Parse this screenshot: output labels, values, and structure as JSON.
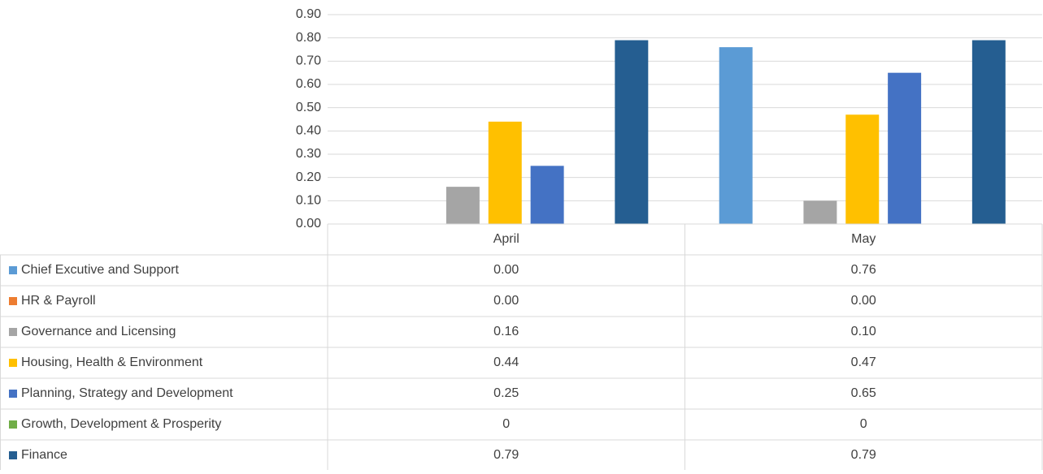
{
  "chart_data": {
    "type": "bar",
    "categories": [
      "April",
      "May"
    ],
    "series": [
      {
        "name": "Chief Excutive and Support",
        "color": "#5b9bd5",
        "values": [
          0,
          0.76
        ],
        "value_labels": [
          "0.00",
          "0.76"
        ]
      },
      {
        "name": "HR & Payroll",
        "color": "#ed7d31",
        "values": [
          0,
          0
        ],
        "value_labels": [
          "0.00",
          "0.00"
        ]
      },
      {
        "name": "Governance and Licensing",
        "color": "#a5a5a5",
        "values": [
          0.16,
          0.1
        ],
        "value_labels": [
          "0.16",
          "0.10"
        ]
      },
      {
        "name": "Housing, Health & Environment",
        "color": "#ffc000",
        "values": [
          0.44,
          0.47
        ],
        "value_labels": [
          "0.44",
          "0.47"
        ]
      },
      {
        "name": "Planning, Strategy and Development",
        "color": "#4472c4",
        "values": [
          0.25,
          0.65
        ],
        "value_labels": [
          "0.25",
          "0.65"
        ]
      },
      {
        "name": "Growth, Development & Prosperity",
        "color": "#70ad47",
        "values": [
          0,
          0
        ],
        "value_labels": [
          "0",
          "0"
        ]
      },
      {
        "name": "Finance",
        "color": "#255e91",
        "values": [
          0.79,
          0.79
        ],
        "value_labels": [
          "0.79",
          "0.79"
        ]
      }
    ],
    "ylim": [
      0,
      0.9
    ],
    "yticks": [
      {
        "value": 0,
        "label": "0.00"
      },
      {
        "value": 0.1,
        "label": "0.10"
      },
      {
        "value": 0.2,
        "label": "0.20"
      },
      {
        "value": 0.3,
        "label": "0.30"
      },
      {
        "value": 0.4,
        "label": "0.40"
      },
      {
        "value": 0.5,
        "label": "0.50"
      },
      {
        "value": 0.6,
        "label": "0.60"
      },
      {
        "value": 0.7,
        "label": "0.70"
      },
      {
        "value": 0.8,
        "label": "0.80"
      },
      {
        "value": 0.9,
        "label": "0.90"
      }
    ],
    "grid": true,
    "data_table": true
  }
}
